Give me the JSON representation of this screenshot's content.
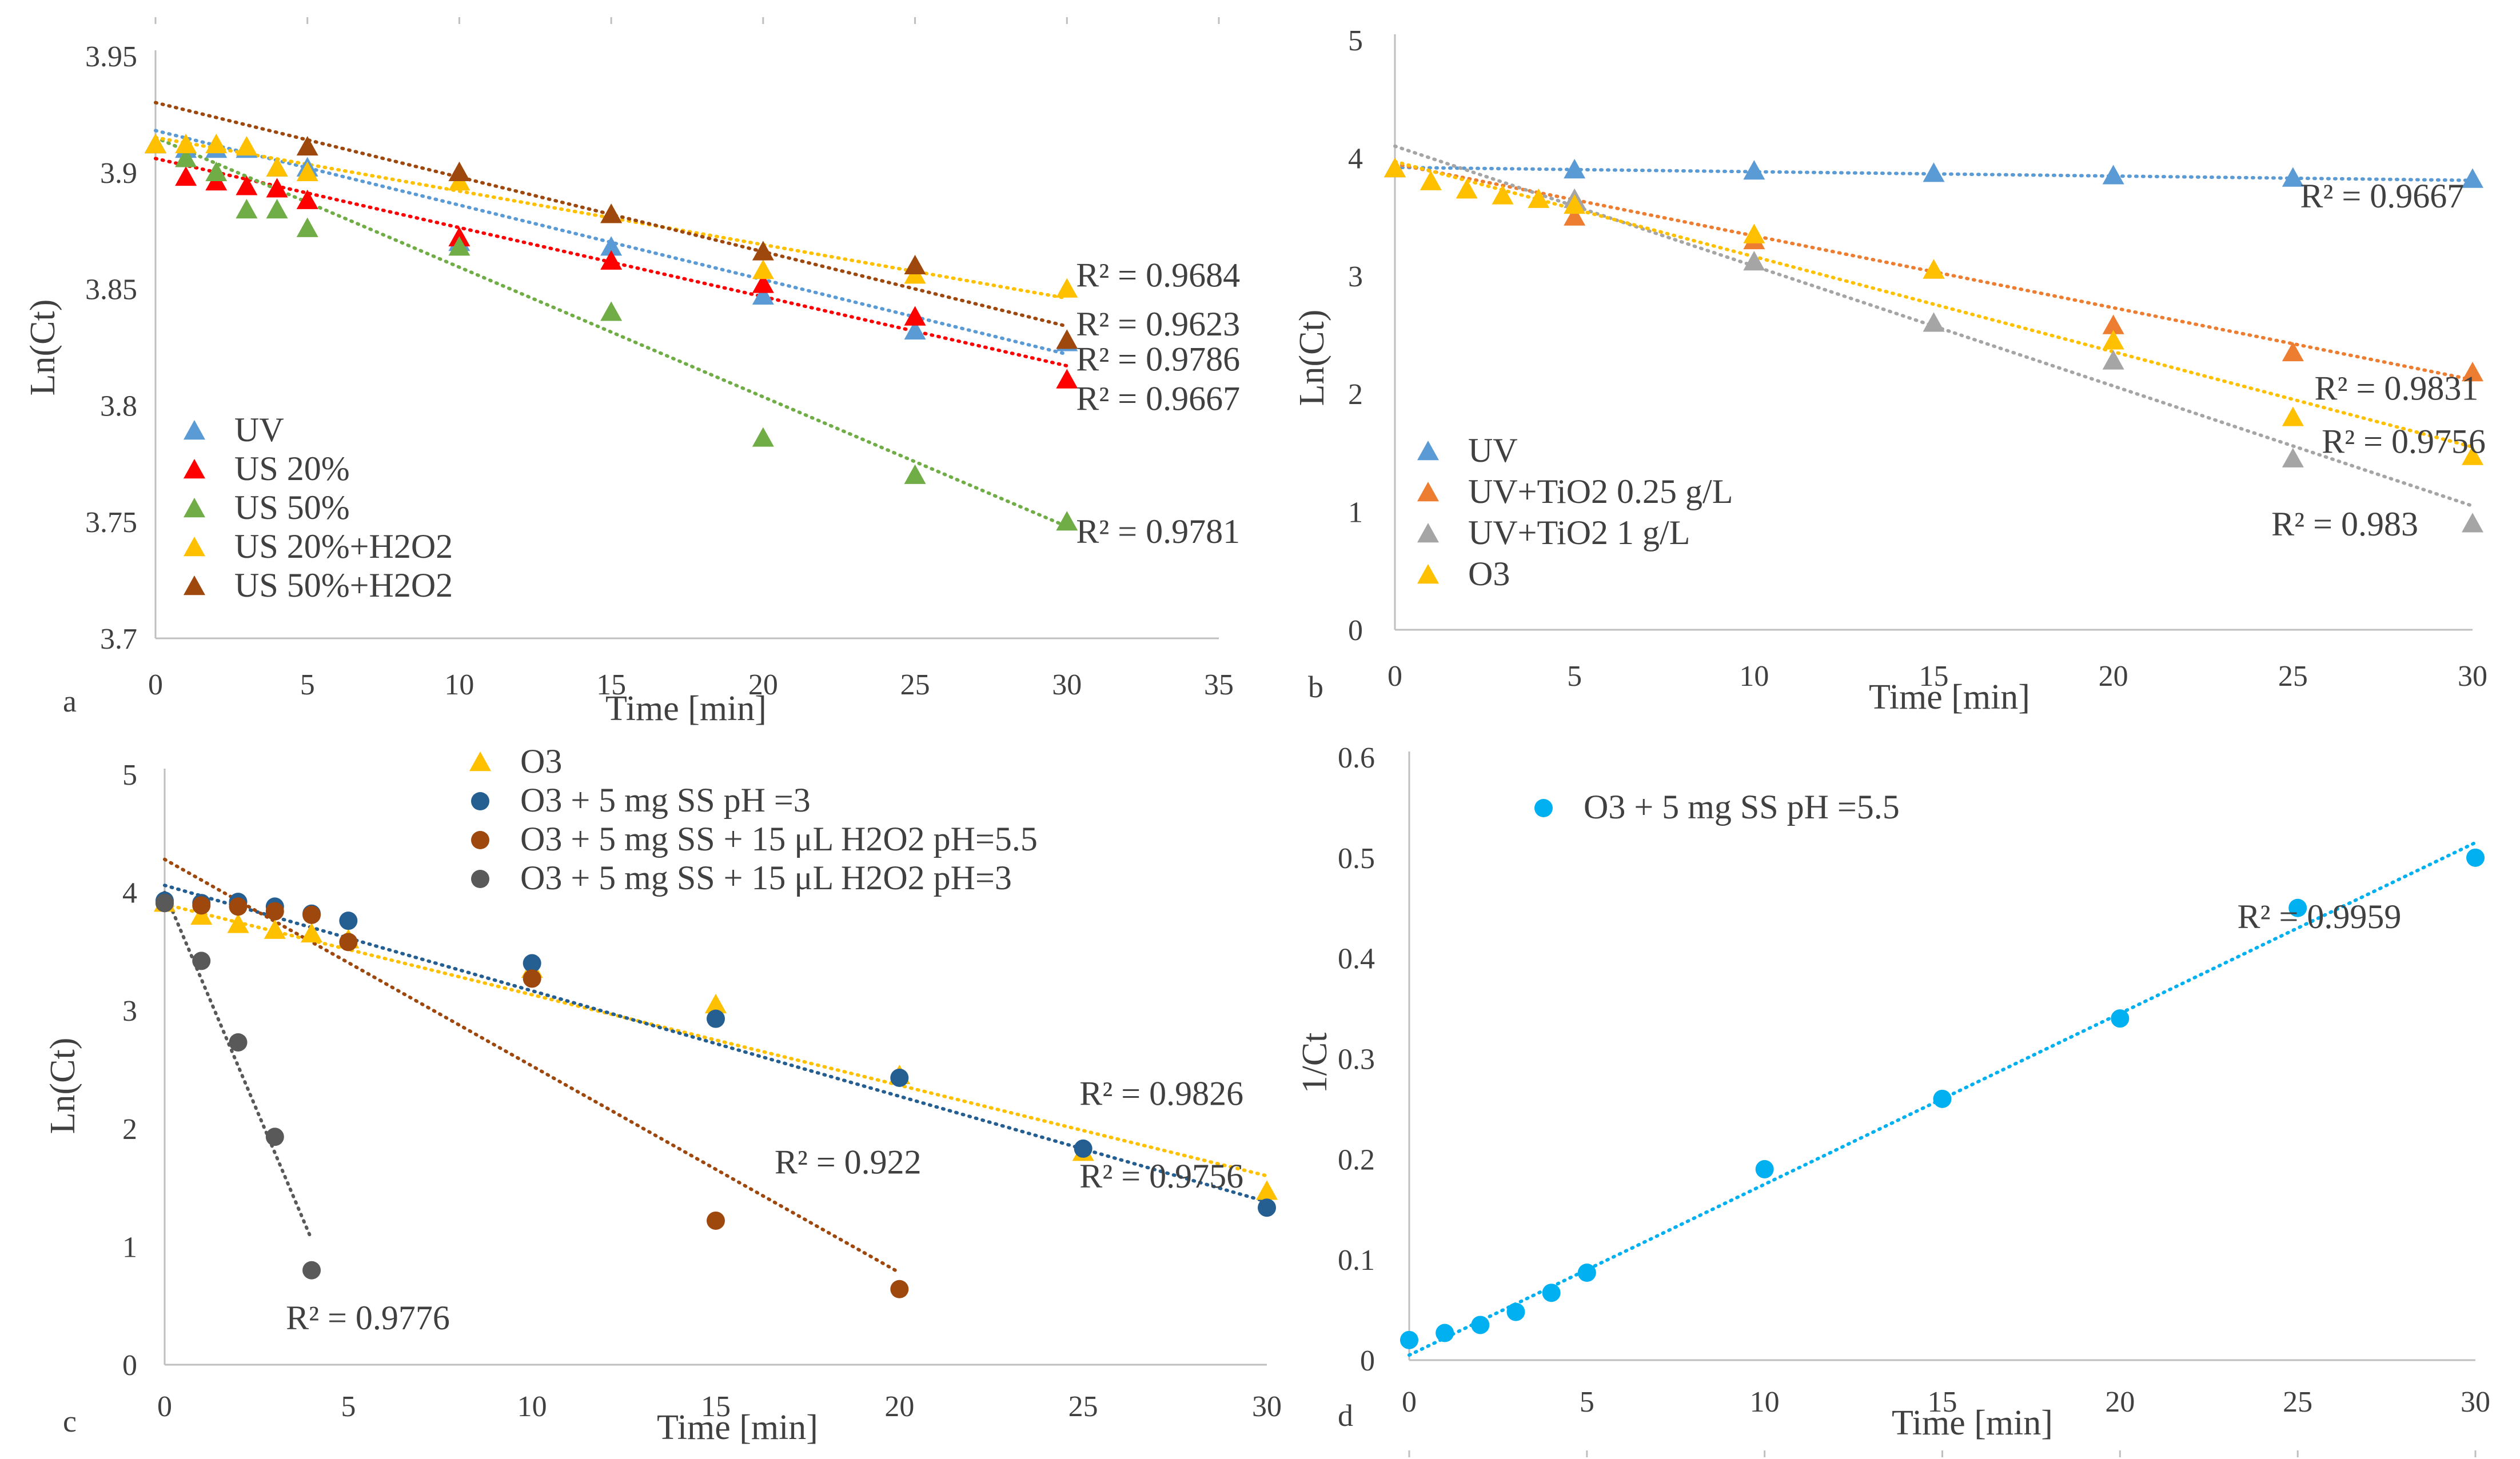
{
  "colors": {
    "uv_blue": "#5b9bd5",
    "red": "#ff0000",
    "green": "#70ad47",
    "yellow": "#ffc000",
    "brown": "#9e480e",
    "orange": "#ed7d31",
    "gray": "#a5a5a5",
    "navy": "#255e91",
    "dkbrown": "#9e480e",
    "dkgray": "#595959",
    "cyan": "#00b0f0",
    "axis": "#bfbfbf",
    "text": "#404040"
  },
  "chart_data": [
    {
      "id": "a",
      "type": "scatter",
      "panel_label": "a",
      "xlabel": "Time [min]",
      "ylabel": "Ln(Ct)",
      "xlim": [
        0,
        35
      ],
      "ylim": [
        3.7,
        3.95
      ],
      "xticks": [
        0,
        5,
        10,
        15,
        20,
        25,
        30,
        35
      ],
      "yticks": [
        3.7,
        3.75,
        3.8,
        3.85,
        3.9,
        3.95
      ],
      "ytick_labels": [
        "3.7",
        "3.75",
        "3.8",
        "3.85",
        "3.9",
        "3.95"
      ],
      "legend_position": "bottom-left",
      "series": [
        {
          "name": "UV",
          "color": "uv_blue",
          "marker": "triangle",
          "x": [
            0,
            1,
            2,
            3,
            4,
            5,
            10,
            15,
            20,
            25,
            30
          ],
          "y": [
            3.912,
            3.91,
            3.91,
            3.91,
            3.902,
            3.902,
            3.87,
            3.868,
            3.847,
            3.832,
            3.827
          ],
          "trend": [
            3.918,
            3.822
          ]
        },
        {
          "name": "US 20%",
          "color": "red",
          "marker": "triangle",
          "x": [
            0,
            1,
            2,
            3,
            4,
            5,
            10,
            15,
            20,
            25,
            30
          ],
          "y": [
            3.912,
            3.898,
            3.896,
            3.894,
            3.893,
            3.888,
            3.872,
            3.862,
            3.852,
            3.838,
            3.811
          ],
          "trend": [
            3.906,
            3.817
          ]
        },
        {
          "name": "US 50%",
          "color": "green",
          "marker": "triangle",
          "x": [
            0,
            1,
            2,
            3,
            4,
            5,
            10,
            15,
            20,
            25,
            30
          ],
          "y": [
            3.912,
            3.906,
            3.9,
            3.884,
            3.884,
            3.876,
            3.868,
            3.84,
            3.786,
            3.77,
            3.75
          ],
          "trend": [
            3.915,
            3.748
          ]
        },
        {
          "name": "US 20%+H2O2",
          "color": "yellow",
          "marker": "triangle",
          "x": [
            0,
            1,
            2,
            3,
            4,
            5,
            10,
            15,
            20,
            25,
            30
          ],
          "y": [
            3.912,
            3.912,
            3.912,
            3.911,
            3.902,
            3.9,
            3.896,
            3.882,
            3.858,
            3.856,
            3.85
          ],
          "trend": [
            3.915,
            3.846
          ]
        },
        {
          "name": "US 50%+H2O2",
          "color": "brown",
          "marker": "triangle",
          "x": [
            5,
            10,
            15,
            20,
            25,
            30
          ],
          "y": [
            3.911,
            3.9,
            3.882,
            3.866,
            3.86,
            3.828
          ],
          "trend": [
            3.93,
            3.834
          ]
        }
      ],
      "annotations": [
        {
          "text": "R² = 0.9684",
          "x": 30.3,
          "y": 3.851
        },
        {
          "text": "R² = 0.9623",
          "x": 30.3,
          "y": 3.83
        },
        {
          "text": "R² = 0.9786",
          "x": 30.3,
          "y": 3.815
        },
        {
          "text": "R² = 0.9667",
          "x": 30.3,
          "y": 3.798
        },
        {
          "text": "R² = 0.9781",
          "x": 30.3,
          "y": 3.741
        }
      ]
    },
    {
      "id": "b",
      "type": "scatter",
      "panel_label": "b",
      "xlabel": "Time [min]",
      "ylabel": "Ln(Ct)",
      "xlim": [
        0,
        30
      ],
      "ylim": [
        0,
        5
      ],
      "xticks": [
        0,
        5,
        10,
        15,
        20,
        25,
        30
      ],
      "yticks": [
        0,
        1,
        2,
        3,
        4,
        5
      ],
      "ytick_labels": [
        "0",
        "1",
        "2",
        "3",
        "4",
        "5"
      ],
      "legend_position": "bottom-left",
      "series": [
        {
          "name": "UV",
          "color": "uv_blue",
          "marker": "triangle",
          "x": [
            0,
            5,
            10,
            15,
            20,
            25,
            30
          ],
          "y": [
            3.91,
            3.9,
            3.89,
            3.87,
            3.85,
            3.83,
            3.82
          ],
          "trend": [
            3.92,
            3.81
          ]
        },
        {
          "name": "UV+TiO2 0.25 g/L",
          "color": "orange",
          "marker": "triangle",
          "x": [
            0,
            5,
            10,
            15,
            20,
            25,
            30
          ],
          "y": [
            3.91,
            3.5,
            3.3,
            3.05,
            2.58,
            2.35,
            2.18
          ],
          "trend": [
            3.95,
            2.12
          ]
        },
        {
          "name": "UV+TiO2 1 g/L",
          "color": "gray",
          "marker": "triangle",
          "x": [
            0,
            5,
            10,
            15,
            20,
            25,
            30
          ],
          "y": [
            3.91,
            3.65,
            3.12,
            2.6,
            2.28,
            1.45,
            0.9
          ],
          "trend": [
            4.1,
            1.05
          ]
        },
        {
          "name": "O3",
          "color": "yellow",
          "marker": "triangle",
          "x": [
            0,
            1,
            2,
            3,
            4,
            5,
            10,
            15,
            20,
            25,
            30
          ],
          "y": [
            3.91,
            3.8,
            3.73,
            3.68,
            3.65,
            3.6,
            3.35,
            3.05,
            2.45,
            1.8,
            1.47
          ],
          "trend": [
            3.97,
            1.55
          ]
        }
      ],
      "annotations": [
        {
          "text": "R² = 0.9667",
          "x": 25.2,
          "y": 3.58
        },
        {
          "text": "R² = 0.9831",
          "x": 25.6,
          "y": 1.95
        },
        {
          "text": "R² = 0.9756",
          "x": 25.8,
          "y": 1.5
        },
        {
          "text": "R² = 0.983",
          "x": 24.4,
          "y": 0.8
        }
      ]
    },
    {
      "id": "c",
      "type": "scatter",
      "panel_label": "c",
      "xlabel": "Time [min]",
      "ylabel": "Ln(Ct)",
      "xlim": [
        0,
        30
      ],
      "ylim": [
        0,
        5
      ],
      "xticks": [
        0,
        5,
        10,
        15,
        20,
        25,
        30
      ],
      "yticks": [
        0,
        1,
        2,
        3,
        4,
        5
      ],
      "ytick_labels": [
        "0",
        "1",
        "2",
        "3",
        "4",
        "5"
      ],
      "legend_position": "top",
      "series": [
        {
          "name": "O3",
          "color": "yellow",
          "marker": "triangle",
          "x": [
            0,
            1,
            2,
            3,
            4,
            5,
            10,
            15,
            20,
            25,
            30
          ],
          "y": [
            3.91,
            3.8,
            3.73,
            3.68,
            3.65,
            3.6,
            3.35,
            3.05,
            2.45,
            1.8,
            1.47
          ],
          "trend": [
            3.9,
            1.6
          ]
        },
        {
          "name": "O3 + 5 mg SS pH =3",
          "color": "navy",
          "marker": "circle",
          "x": [
            0,
            1,
            2,
            3,
            4,
            5,
            10,
            15,
            20,
            25,
            30
          ],
          "y": [
            3.93,
            3.91,
            3.92,
            3.88,
            3.82,
            3.76,
            3.4,
            2.93,
            2.43,
            1.83,
            1.33
          ],
          "trend": [
            4.06,
            1.38
          ]
        },
        {
          "name": "O3 + 5 mg SS + 15 μL H2O2 pH=5.5",
          "color": "dkbrown",
          "marker": "circle",
          "x": [
            0,
            1,
            2,
            3,
            4,
            5,
            10,
            15,
            20
          ],
          "y": [
            3.91,
            3.89,
            3.88,
            3.84,
            3.81,
            3.58,
            3.27,
            1.22,
            0.64
          ],
          "trend_x": [
            0,
            20
          ],
          "trend": [
            4.28,
            0.78
          ]
        },
        {
          "name": "O3 + 5 mg SS + 15 μL H2O2 pH=3",
          "color": "dkgray",
          "marker": "circle",
          "x": [
            0,
            1,
            2,
            3,
            4
          ],
          "y": [
            3.91,
            3.42,
            2.73,
            1.93,
            0.8
          ],
          "trend_x": [
            0,
            4
          ],
          "trend": [
            4.0,
            1.06
          ]
        }
      ],
      "annotations": [
        {
          "text": "R² = 0.9826",
          "x": 24.9,
          "y": 2.2
        },
        {
          "text": "R² = 0.922",
          "x": 16.6,
          "y": 1.62
        },
        {
          "text": "R² = 0.9756",
          "x": 24.9,
          "y": 1.5
        },
        {
          "text": "R² = 0.9776",
          "x": 3.3,
          "y": 0.3
        }
      ]
    },
    {
      "id": "d",
      "type": "scatter",
      "panel_label": "d",
      "xlabel": "Time [min]",
      "ylabel": "1/Ct",
      "xlim": [
        0,
        30
      ],
      "ylim": [
        0,
        0.6
      ],
      "xticks": [
        0,
        5,
        10,
        15,
        20,
        25,
        30
      ],
      "yticks": [
        0,
        0.1,
        0.2,
        0.3,
        0.4,
        0.5,
        0.6
      ],
      "ytick_labels": [
        "0",
        "0.1",
        "0.2",
        "0.3",
        "0.4",
        "0.5",
        "0.6"
      ],
      "legend_position": "top-left",
      "series": [
        {
          "name": "O3 + 5 mg SS pH =5.5",
          "color": "cyan",
          "marker": "circle",
          "x": [
            0,
            1,
            2,
            3,
            4,
            5,
            10,
            15,
            20,
            25,
            30
          ],
          "y": [
            0.02,
            0.027,
            0.035,
            0.048,
            0.067,
            0.087,
            0.19,
            0.26,
            0.34,
            0.45,
            0.5
          ],
          "trend": [
            0.005,
            0.515
          ]
        }
      ],
      "annotations": [
        {
          "text": "R² = 0.9959",
          "x": 23.3,
          "y": 0.43
        }
      ]
    }
  ]
}
